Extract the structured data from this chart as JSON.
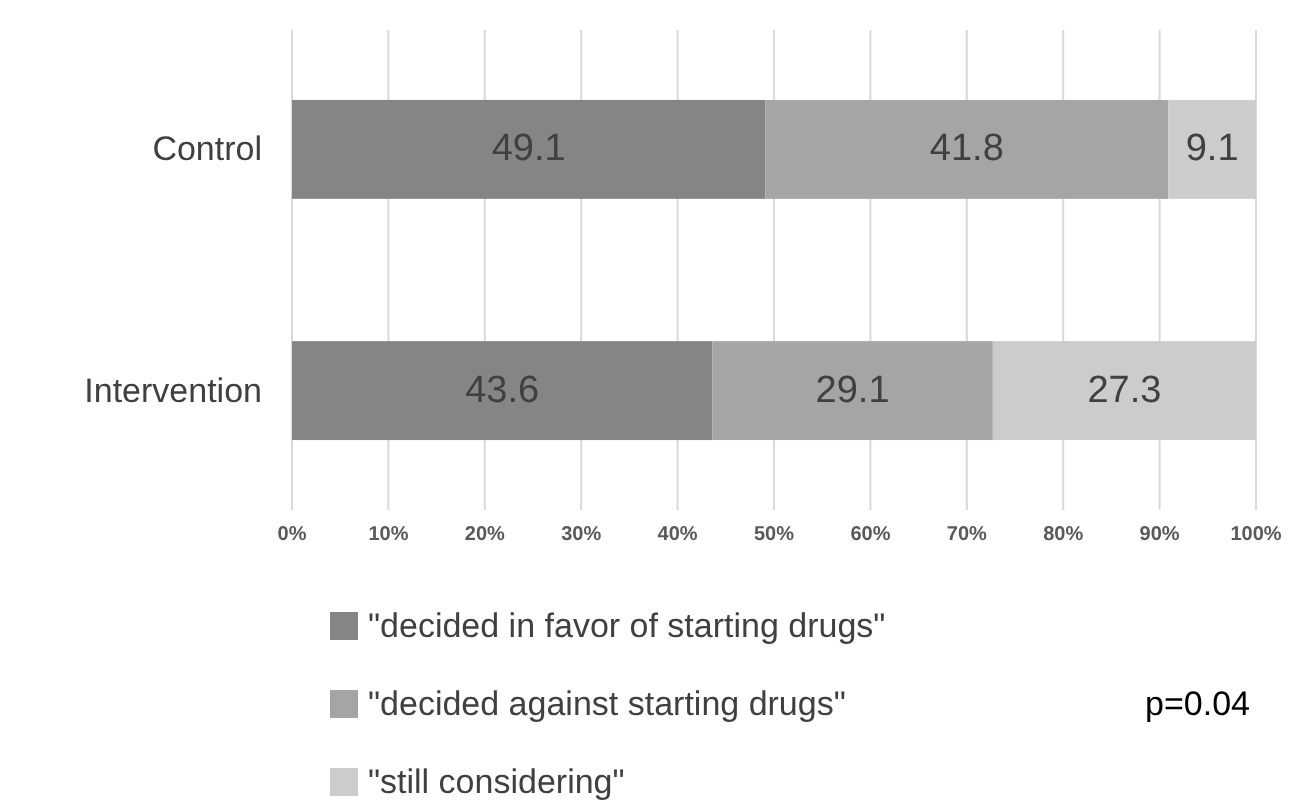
{
  "chart_data": {
    "type": "bar",
    "orientation": "horizontal",
    "stacked": true,
    "categories": [
      "Control",
      "Intervention"
    ],
    "series": [
      {
        "name": "\"decided in favor of starting drugs\"",
        "color": "#858585",
        "values": [
          49.1,
          43.6
        ]
      },
      {
        "name": "\"decided against starting drugs\"",
        "color": "#a5a5a5",
        "values": [
          41.8,
          29.1
        ]
      },
      {
        "name": "\"still considering\"",
        "color": "#cccccc",
        "values": [
          9.1,
          27.3
        ]
      }
    ],
    "xlim": [
      0,
      100
    ],
    "xticks": [
      {
        "value": 0,
        "label": "0%"
      },
      {
        "value": 10,
        "label": "10%"
      },
      {
        "value": 20,
        "label": "20%"
      },
      {
        "value": 30,
        "label": "30%"
      },
      {
        "value": 40,
        "label": "40%"
      },
      {
        "value": 50,
        "label": "50%"
      },
      {
        "value": 60,
        "label": "60%"
      },
      {
        "value": 70,
        "label": "70%"
      },
      {
        "value": 80,
        "label": "80%"
      },
      {
        "value": 90,
        "label": "90%"
      },
      {
        "value": 100,
        "label": "100%"
      }
    ],
    "grid": "x",
    "data_labels": true,
    "legend": "bottom",
    "annotations": [
      "p=0.04"
    ]
  }
}
